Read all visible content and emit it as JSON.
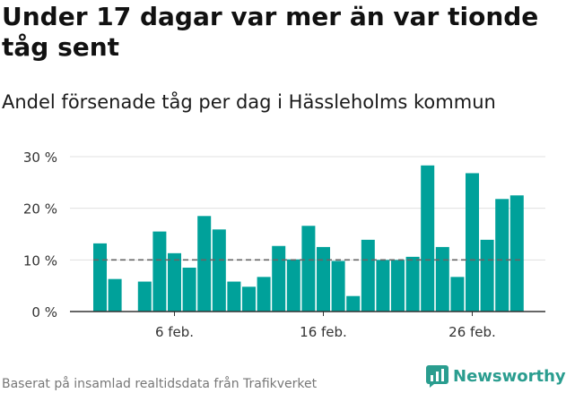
{
  "title": "Under 17 dagar var mer än var tionde tåg sent",
  "subtitle": "Andel försenade tåg per dag i Hässleholms kommun",
  "footer": {
    "source": "Baserat på insamlad realtidsdata från Trafikverket",
    "brand": "Newsworthy"
  },
  "colors": {
    "bar": "#00a19a",
    "reference_line": "#666666",
    "grid": "#e0e0e0",
    "axis": "#333333",
    "brand": "#2a9d8f"
  },
  "chart_data": {
    "type": "bar",
    "title": "Under 17 dagar var mer än var tionde tåg sent",
    "subtitle": "Andel försenade tåg per dag i Hässleholms kommun",
    "xlabel": "",
    "ylabel": "",
    "ylim": [
      0,
      30
    ],
    "yticks": [
      0,
      10,
      20,
      30
    ],
    "ytick_labels": [
      "0 %",
      "10 %",
      "20 %",
      "30 %"
    ],
    "xtick_labels": [
      {
        "label": "6 feb.",
        "index": 5
      },
      {
        "label": "16 feb.",
        "index": 15
      },
      {
        "label": "26 feb.",
        "index": 25
      }
    ],
    "reference_value": 10,
    "grid": true,
    "categories": [
      "1 feb.",
      "2 feb.",
      "3 feb.",
      "4 feb.",
      "5 feb.",
      "6 feb.",
      "7 feb.",
      "8 feb.",
      "9 feb.",
      "10 feb.",
      "11 feb.",
      "12 feb.",
      "13 feb.",
      "14 feb.",
      "15 feb.",
      "16 feb.",
      "17 feb.",
      "18 feb.",
      "19 feb.",
      "20 feb.",
      "21 feb.",
      "22 feb.",
      "23 feb.",
      "24 feb.",
      "25 feb.",
      "26 feb.",
      "27 feb.",
      "28 feb.",
      "29 feb."
    ],
    "values": [
      13.2,
      6.3,
      null,
      5.8,
      15.5,
      11.3,
      8.5,
      18.5,
      15.9,
      5.8,
      4.8,
      6.7,
      12.7,
      10.1,
      16.6,
      12.5,
      9.8,
      3.0,
      13.9,
      10.0,
      10.0,
      10.6,
      28.3,
      12.5,
      6.7,
      26.8,
      13.9,
      21.8,
      22.5
    ]
  }
}
